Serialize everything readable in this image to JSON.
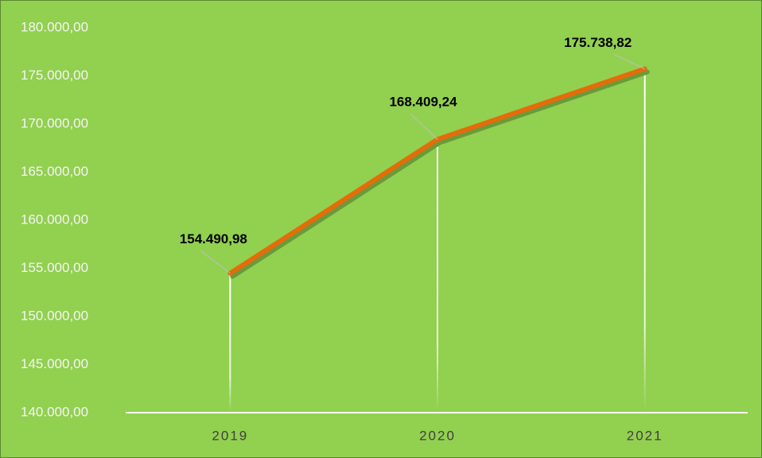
{
  "chart_data": {
    "type": "line",
    "categories": [
      "2019",
      "2020",
      "2021"
    ],
    "values": [
      154490.98,
      168409.24,
      175738.82
    ],
    "value_labels": [
      "154.490,98",
      "168.409,24",
      "175.738,82"
    ],
    "color": "#e46c0a",
    "ylim": [
      140000,
      180000
    ],
    "yticks": [
      {
        "value": 140000,
        "label": "140.000,00"
      },
      {
        "value": 145000,
        "label": "145.000,00"
      },
      {
        "value": 150000,
        "label": "150.000,00"
      },
      {
        "value": 155000,
        "label": "155.000,00"
      },
      {
        "value": 160000,
        "label": "160.000,00"
      },
      {
        "value": 165000,
        "label": "165.000,00"
      },
      {
        "value": 170000,
        "label": "170.000,00"
      },
      {
        "value": 175000,
        "label": "175.000,00"
      },
      {
        "value": 180000,
        "label": "180.000,00"
      }
    ]
  }
}
